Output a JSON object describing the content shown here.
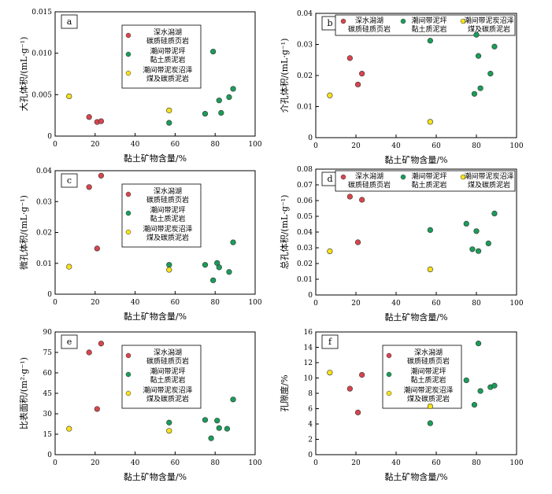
{
  "legend_labels": {
    "deep": "深水潟湖\n碳质硅质页岩",
    "flat": "潮间带泥坪\n黏土质泥岩",
    "swamp": "潮间带泥炭沼泽\n煤及碳质泥岩"
  },
  "colors": {
    "deep": "#d9454e",
    "flat": "#1a9d5a",
    "swamp": "#f7e21a"
  },
  "chart_data": [
    {
      "type": "scatter",
      "panel_label": "a",
      "xlabel": "黏土矿物含量/%",
      "ylabel": "大孔体积/(mL·g⁻¹)",
      "xlim": [
        0,
        100
      ],
      "ylim": [
        0,
        0.015
      ],
      "xticks": [
        "0",
        "20",
        "40",
        "60",
        "80",
        "100"
      ],
      "yticks": [
        "0",
        "0.005",
        "0.010",
        "0.015"
      ],
      "legend_layout": "vertical",
      "legend_position": "upper-middle",
      "series": [
        {
          "key": "deep",
          "x": [
            17,
            21,
            23
          ],
          "y": [
            0.0023,
            0.0017,
            0.0018
          ]
        },
        {
          "key": "flat",
          "x": [
            57,
            75,
            79,
            82,
            83,
            87,
            89
          ],
          "y": [
            0.0016,
            0.0027,
            0.0102,
            0.0043,
            0.0028,
            0.0047,
            0.0057
          ]
        },
        {
          "key": "swamp",
          "x": [
            7,
            57
          ],
          "y": [
            0.0048,
            0.0031
          ]
        }
      ]
    },
    {
      "type": "scatter",
      "panel_label": "b",
      "xlabel": "黏土矿物含量/%",
      "ylabel": "介孔体积/(mL·g⁻¹)",
      "xlim": [
        0,
        100
      ],
      "ylim": [
        0,
        0.04
      ],
      "xticks": [
        "0",
        "20",
        "40",
        "60",
        "80",
        "100"
      ],
      "yticks": [
        "0",
        "0.01",
        "0.02",
        "0.03",
        "0.04"
      ],
      "legend_layout": "horizontal",
      "legend_position": "top",
      "series": [
        {
          "key": "deep",
          "x": [
            17,
            21,
            23
          ],
          "y": [
            0.0256,
            0.0171,
            0.0206
          ]
        },
        {
          "key": "flat",
          "x": [
            57,
            79,
            80,
            81,
            82,
            87,
            89
          ],
          "y": [
            0.0312,
            0.0141,
            0.0331,
            0.0263,
            0.0159,
            0.0206,
            0.0293
          ]
        },
        {
          "key": "swamp",
          "x": [
            7,
            57
          ],
          "y": [
            0.0136,
            0.0051
          ]
        }
      ]
    },
    {
      "type": "scatter",
      "panel_label": "c",
      "xlabel": "黏土矿物含量/%",
      "ylabel": "微孔体积/(mL·g⁻¹)",
      "xlim": [
        0,
        100
      ],
      "ylim": [
        0,
        0.04
      ],
      "xticks": [
        "0",
        "20",
        "40",
        "60",
        "80",
        "100"
      ],
      "yticks": [
        "0",
        "0.01",
        "0.02",
        "0.03",
        "0.04"
      ],
      "legend_layout": "vertical",
      "legend_position": "upper-middle",
      "series": [
        {
          "key": "deep",
          "x": [
            17,
            21,
            23
          ],
          "y": [
            0.0347,
            0.0148,
            0.0384
          ]
        },
        {
          "key": "flat",
          "x": [
            57,
            75,
            79,
            81,
            82,
            87,
            89
          ],
          "y": [
            0.0095,
            0.0095,
            0.0045,
            0.0101,
            0.0087,
            0.0072,
            0.0168
          ]
        },
        {
          "key": "swamp",
          "x": [
            7,
            57
          ],
          "y": [
            0.0089,
            0.0079
          ]
        }
      ]
    },
    {
      "type": "scatter",
      "panel_label": "d",
      "xlabel": "黏土矿物含量/%",
      "ylabel": "总孔体积/(mL·g⁻¹)",
      "xlim": [
        0,
        100
      ],
      "ylim": [
        0,
        0.08
      ],
      "xticks": [
        "0",
        "20",
        "40",
        "60",
        "80",
        "100"
      ],
      "yticks": [
        "0",
        "0.01",
        "0.02",
        "0.03",
        "0.04",
        "0.05",
        "0.06",
        "0.07",
        "0.08"
      ],
      "legend_layout": "horizontal",
      "legend_position": "top",
      "series": [
        {
          "key": "deep",
          "x": [
            17,
            21,
            23
          ],
          "y": [
            0.0625,
            0.0335,
            0.0605
          ]
        },
        {
          "key": "flat",
          "x": [
            57,
            75,
            78,
            80,
            81,
            86,
            89
          ],
          "y": [
            0.0413,
            0.0453,
            0.0291,
            0.0406,
            0.0279,
            0.0328,
            0.0518
          ]
        },
        {
          "key": "swamp",
          "x": [
            7,
            57
          ],
          "y": [
            0.0278,
            0.0163
          ]
        }
      ]
    },
    {
      "type": "scatter",
      "panel_label": "e",
      "xlabel": "黏土矿物含量/%",
      "ylabel": "比表面积/(m²·g⁻¹)",
      "xlim": [
        0,
        100
      ],
      "ylim": [
        0,
        90
      ],
      "xticks": [
        "0",
        "20",
        "40",
        "60",
        "80",
        "100"
      ],
      "yticks": [
        "0",
        "15",
        "30",
        "45",
        "60",
        "75",
        "90"
      ],
      "legend_layout": "vertical",
      "legend_position": "upper-middle",
      "series": [
        {
          "key": "deep",
          "x": [
            17,
            21,
            23
          ],
          "y": [
            75,
            33.5,
            81.5
          ]
        },
        {
          "key": "flat",
          "x": [
            57,
            75,
            78,
            81,
            82,
            86,
            89
          ],
          "y": [
            23.5,
            25.5,
            12,
            25,
            19.5,
            19,
            40.5
          ]
        },
        {
          "key": "swamp",
          "x": [
            7,
            57
          ],
          "y": [
            19,
            17.5
          ]
        }
      ]
    },
    {
      "type": "scatter",
      "panel_label": "f",
      "xlabel": "黏土矿物含量/%",
      "ylabel": "孔隙度/%",
      "xlim": [
        0,
        100
      ],
      "ylim": [
        0,
        16
      ],
      "xticks": [
        "0",
        "20",
        "40",
        "60",
        "80",
        "100"
      ],
      "yticks": [
        "0",
        "2",
        "4",
        "6",
        "8",
        "10",
        "12",
        "14",
        "16"
      ],
      "legend_layout": "vertical",
      "legend_position": "upper-middle",
      "series": [
        {
          "key": "deep",
          "x": [
            17,
            21,
            23
          ],
          "y": [
            8.6,
            5.5,
            10.4
          ]
        },
        {
          "key": "flat",
          "x": [
            57,
            75,
            79,
            81,
            82,
            87,
            89
          ],
          "y": [
            4.1,
            9.7,
            6.5,
            14.5,
            8.3,
            8.8,
            9.0
          ]
        },
        {
          "key": "swamp",
          "x": [
            7,
            57
          ],
          "y": [
            10.7,
            6.3
          ]
        }
      ]
    }
  ]
}
